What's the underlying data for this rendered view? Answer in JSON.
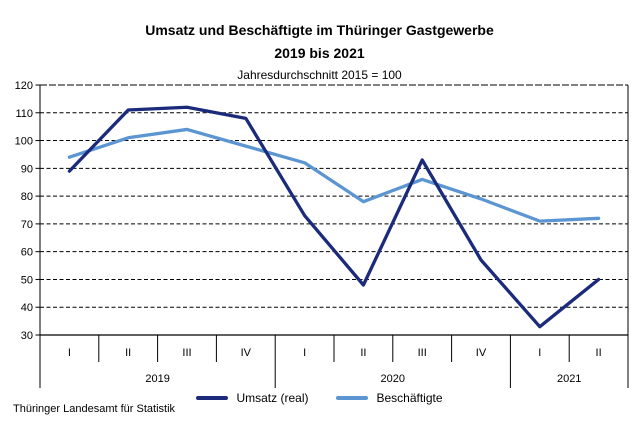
{
  "header": {
    "title_line1": "Umsatz und Beschäftigte im Thüringer Gastgewerbe",
    "title_line2": "2019 bis 2021",
    "subtitle": "Jahresdurchschnitt 2015 = 100"
  },
  "footer": {
    "source": "Thüringer Landesamt für Statistik"
  },
  "legend": [
    {
      "label": "Umsatz (real)",
      "color": "#1b2a7b"
    },
    {
      "label": "Beschäftigte",
      "color": "#5b96d2"
    }
  ],
  "colors": {
    "axis": "#000000",
    "background": "#ffffff"
  },
  "chart_data": {
    "type": "line",
    "quarters": [
      "I",
      "II",
      "III",
      "IV",
      "I",
      "II",
      "III",
      "IV",
      "I",
      "II"
    ],
    "years": [
      {
        "label": "2019",
        "span": 4
      },
      {
        "label": "2020",
        "span": 4
      },
      {
        "label": "2021",
        "span": 2
      }
    ],
    "y_ticks": [
      120,
      110,
      100,
      90,
      80,
      70,
      60,
      50,
      40,
      30
    ],
    "ylim": [
      30,
      120
    ],
    "grid": "horizontal-dashed",
    "legend_position": "bottom-center",
    "series": [
      {
        "name": "Umsatz (real)",
        "color": "#1b2a7b",
        "values": [
          89,
          111,
          112,
          108,
          73,
          48,
          93,
          57,
          33,
          50
        ]
      },
      {
        "name": "Beschäftigte",
        "color": "#5b96d2",
        "values": [
          94,
          101,
          104,
          98,
          92,
          78,
          86,
          79,
          71,
          72
        ]
      }
    ]
  }
}
